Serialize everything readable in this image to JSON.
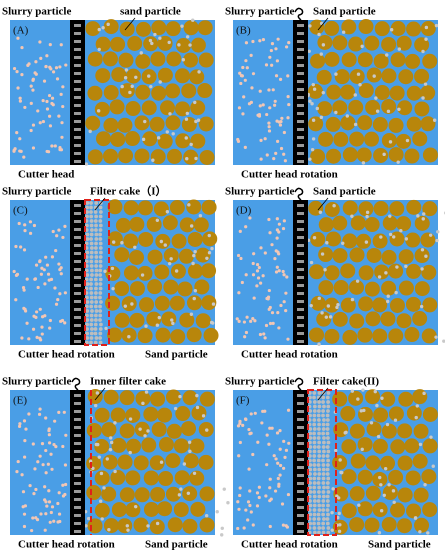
{
  "panels": [
    {
      "label": "(A)",
      "slurry": "Slurry particle",
      "top": "sand particle",
      "bottom": "Cutter head"
    },
    {
      "label": "(B)",
      "slurry": "Slurry particle",
      "top": "Sand particle",
      "bottom": "Cutter head rotation"
    },
    {
      "label": "(C)",
      "slurry": "Slurry particle",
      "top": "Filter cake（I）",
      "bottom": "Cutter head rotation",
      "bottom_right": "Sand particle"
    },
    {
      "label": "(D)",
      "slurry": "Slurry particle",
      "top": "Sand particle",
      "bottom": "Cutter head rotation"
    },
    {
      "label": "(E)",
      "slurry": "Slurry particle",
      "top": "Inner filter cake",
      "bottom": "Cutter head rotation",
      "bottom_right": "Sand particle"
    },
    {
      "label": "(F)",
      "slurry": "Slurry particle",
      "top": "Filter cake(II)",
      "bottom": "Cutter head rotation",
      "bottom_right": "Sand particle"
    }
  ]
}
